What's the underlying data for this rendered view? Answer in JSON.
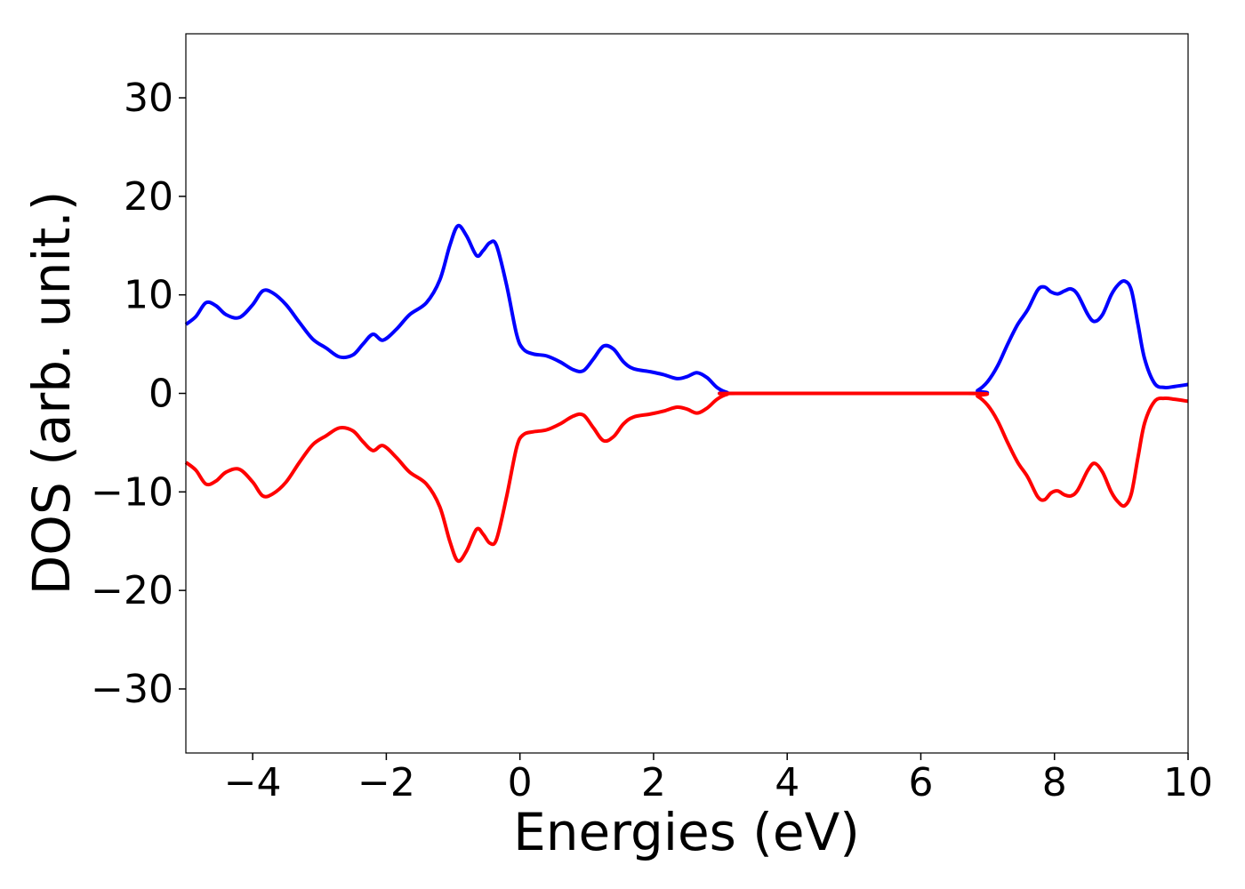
{
  "chart_data": {
    "type": "line",
    "title": "",
    "xlabel": "Energies (eV)",
    "ylabel": "DOS (arb. unit.)",
    "xlim": [
      -5,
      10
    ],
    "ylim": [
      -36.5,
      36.5
    ],
    "grid": false,
    "x_ticks": [
      {
        "value": -4,
        "label": "−4"
      },
      {
        "value": -2,
        "label": "−2"
      },
      {
        "value": 0,
        "label": "0"
      },
      {
        "value": 2,
        "label": "2"
      },
      {
        "value": 4,
        "label": "4"
      },
      {
        "value": 6,
        "label": "6"
      },
      {
        "value": 8,
        "label": "8"
      },
      {
        "value": 10,
        "label": "10"
      }
    ],
    "y_ticks": [
      {
        "value": 30,
        "label": "30"
      },
      {
        "value": 20,
        "label": "20"
      },
      {
        "value": 10,
        "label": "10"
      },
      {
        "value": 0,
        "label": "0"
      },
      {
        "value": -10,
        "label": "−10"
      },
      {
        "value": -20,
        "label": "−20"
      },
      {
        "value": -30,
        "label": "−30"
      }
    ],
    "series": [
      {
        "key": "spin-up",
        "color": "#0000ff",
        "points": [
          [
            -5.0,
            7.0
          ],
          [
            -4.85,
            7.8
          ],
          [
            -4.7,
            9.2
          ],
          [
            -4.55,
            8.9
          ],
          [
            -4.4,
            8.0
          ],
          [
            -4.2,
            7.7
          ],
          [
            -4.0,
            9.0
          ],
          [
            -3.85,
            10.4
          ],
          [
            -3.7,
            10.2
          ],
          [
            -3.5,
            9.0
          ],
          [
            -3.3,
            7.2
          ],
          [
            -3.1,
            5.5
          ],
          [
            -2.9,
            4.6
          ],
          [
            -2.7,
            3.7
          ],
          [
            -2.5,
            3.9
          ],
          [
            -2.35,
            5.0
          ],
          [
            -2.2,
            6.0
          ],
          [
            -2.05,
            5.4
          ],
          [
            -1.85,
            6.5
          ],
          [
            -1.65,
            8.0
          ],
          [
            -1.4,
            9.2
          ],
          [
            -1.2,
            11.5
          ],
          [
            -1.05,
            15.0
          ],
          [
            -0.93,
            17.0
          ],
          [
            -0.8,
            16.0
          ],
          [
            -0.65,
            14.0
          ],
          [
            -0.55,
            14.5
          ],
          [
            -0.45,
            15.3
          ],
          [
            -0.35,
            15.0
          ],
          [
            -0.2,
            11.0
          ],
          [
            -0.05,
            6.0
          ],
          [
            0.05,
            4.5
          ],
          [
            0.2,
            4.0
          ],
          [
            0.4,
            3.8
          ],
          [
            0.6,
            3.2
          ],
          [
            0.8,
            2.4
          ],
          [
            0.95,
            2.3
          ],
          [
            1.1,
            3.5
          ],
          [
            1.25,
            4.8
          ],
          [
            1.4,
            4.5
          ],
          [
            1.55,
            3.2
          ],
          [
            1.7,
            2.5
          ],
          [
            1.95,
            2.2
          ],
          [
            2.15,
            1.9
          ],
          [
            2.35,
            1.5
          ],
          [
            2.5,
            1.7
          ],
          [
            2.65,
            2.1
          ],
          [
            2.8,
            1.6
          ],
          [
            2.95,
            0.6
          ],
          [
            3.1,
            0.1
          ],
          [
            3.3,
            0.0
          ],
          [
            6.7,
            0.0
          ],
          [
            6.85,
            0.3
          ],
          [
            7.0,
            1.2
          ],
          [
            7.15,
            2.8
          ],
          [
            7.3,
            5.0
          ],
          [
            7.45,
            7.0
          ],
          [
            7.6,
            8.5
          ],
          [
            7.75,
            10.5
          ],
          [
            7.85,
            10.8
          ],
          [
            7.95,
            10.3
          ],
          [
            8.05,
            10.1
          ],
          [
            8.15,
            10.4
          ],
          [
            8.25,
            10.6
          ],
          [
            8.35,
            10.0
          ],
          [
            8.5,
            8.0
          ],
          [
            8.6,
            7.3
          ],
          [
            8.72,
            8.0
          ],
          [
            8.85,
            10.0
          ],
          [
            8.95,
            11.0
          ],
          [
            9.05,
            11.4
          ],
          [
            9.15,
            10.5
          ],
          [
            9.25,
            7.0
          ],
          [
            9.35,
            3.5
          ],
          [
            9.5,
            1.0
          ],
          [
            9.65,
            0.6
          ],
          [
            9.8,
            0.7
          ],
          [
            10.0,
            0.9
          ]
        ]
      },
      {
        "key": "spin-down",
        "color": "#ff0000",
        "points": [
          [
            -5.0,
            -7.0
          ],
          [
            -4.85,
            -7.8
          ],
          [
            -4.7,
            -9.2
          ],
          [
            -4.55,
            -8.9
          ],
          [
            -4.4,
            -8.0
          ],
          [
            -4.2,
            -7.7
          ],
          [
            -4.0,
            -9.0
          ],
          [
            -3.85,
            -10.4
          ],
          [
            -3.7,
            -10.2
          ],
          [
            -3.5,
            -9.0
          ],
          [
            -3.3,
            -7.0
          ],
          [
            -3.1,
            -5.2
          ],
          [
            -2.9,
            -4.3
          ],
          [
            -2.7,
            -3.5
          ],
          [
            -2.5,
            -3.8
          ],
          [
            -2.35,
            -4.9
          ],
          [
            -2.2,
            -5.8
          ],
          [
            -2.05,
            -5.3
          ],
          [
            -1.85,
            -6.5
          ],
          [
            -1.65,
            -8.0
          ],
          [
            -1.4,
            -9.2
          ],
          [
            -1.2,
            -11.5
          ],
          [
            -1.05,
            -15.0
          ],
          [
            -0.93,
            -17.0
          ],
          [
            -0.8,
            -16.0
          ],
          [
            -0.65,
            -13.8
          ],
          [
            -0.55,
            -14.3
          ],
          [
            -0.45,
            -15.2
          ],
          [
            -0.35,
            -14.8
          ],
          [
            -0.2,
            -10.5
          ],
          [
            -0.05,
            -5.5
          ],
          [
            0.05,
            -4.2
          ],
          [
            0.2,
            -3.9
          ],
          [
            0.4,
            -3.7
          ],
          [
            0.6,
            -3.1
          ],
          [
            0.8,
            -2.3
          ],
          [
            0.95,
            -2.2
          ],
          [
            1.1,
            -3.5
          ],
          [
            1.25,
            -4.8
          ],
          [
            1.4,
            -4.4
          ],
          [
            1.55,
            -3.1
          ],
          [
            1.7,
            -2.4
          ],
          [
            1.95,
            -2.1
          ],
          [
            2.15,
            -1.8
          ],
          [
            2.35,
            -1.4
          ],
          [
            2.5,
            -1.6
          ],
          [
            2.65,
            -2.0
          ],
          [
            2.8,
            -1.5
          ],
          [
            2.95,
            -0.6
          ],
          [
            3.1,
            -0.1
          ],
          [
            3.3,
            0.0
          ],
          [
            6.7,
            0.0
          ],
          [
            6.85,
            -0.3
          ],
          [
            7.0,
            -1.2
          ],
          [
            7.15,
            -2.8
          ],
          [
            7.3,
            -5.0
          ],
          [
            7.45,
            -7.0
          ],
          [
            7.6,
            -8.5
          ],
          [
            7.75,
            -10.5
          ],
          [
            7.85,
            -10.8
          ],
          [
            7.95,
            -10.1
          ],
          [
            8.05,
            -9.9
          ],
          [
            8.15,
            -10.3
          ],
          [
            8.25,
            -10.4
          ],
          [
            8.35,
            -9.8
          ],
          [
            8.5,
            -7.8
          ],
          [
            8.6,
            -7.1
          ],
          [
            8.72,
            -8.0
          ],
          [
            8.85,
            -10.0
          ],
          [
            8.95,
            -11.0
          ],
          [
            9.05,
            -11.4
          ],
          [
            9.15,
            -10.2
          ],
          [
            9.25,
            -6.5
          ],
          [
            9.35,
            -3.0
          ],
          [
            9.5,
            -0.8
          ],
          [
            9.65,
            -0.5
          ],
          [
            9.8,
            -0.6
          ],
          [
            10.0,
            -0.8
          ]
        ]
      }
    ]
  }
}
